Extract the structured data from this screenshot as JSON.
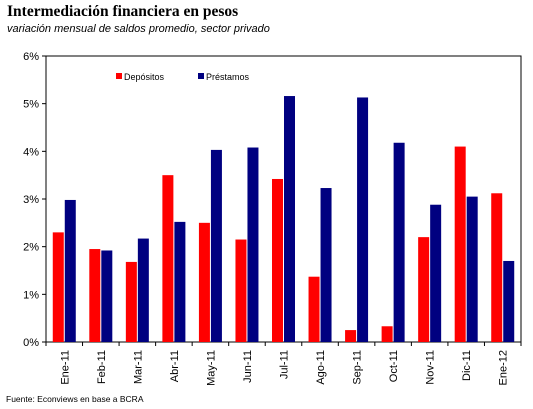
{
  "title": "Intermediación financiera en pesos",
  "subtitle": "variación mensual de saldos promedio, sector privado",
  "source": "Fuente: Econviews en base a BCRA",
  "colors": {
    "depositos": "#ff0000",
    "prestamos": "#000080"
  },
  "chart_data": {
    "type": "bar",
    "categories": [
      "Ene-11",
      "Feb-11",
      "Mar-11",
      "Abr-11",
      "May-11",
      "Jun-11",
      "Jul-11",
      "Ago-11",
      "Sep-11",
      "Oct-11",
      "Nov-11",
      "Dic-11",
      "Ene-12"
    ],
    "series": [
      {
        "name": "Depósitos",
        "values": [
          2.3,
          1.95,
          1.68,
          3.5,
          2.5,
          2.15,
          3.42,
          1.37,
          0.25,
          0.33,
          2.2,
          4.1,
          3.12
        ]
      },
      {
        "name": "Préstamos",
        "values": [
          2.98,
          1.92,
          2.17,
          2.52,
          4.03,
          4.08,
          5.16,
          3.23,
          5.13,
          4.18,
          2.88,
          3.05,
          1.7
        ]
      }
    ],
    "ylim": [
      0,
      6
    ],
    "yticks": [
      "0%",
      "1%",
      "2%",
      "3%",
      "4%",
      "5%",
      "6%"
    ],
    "grid": false,
    "legend": "top-left"
  }
}
